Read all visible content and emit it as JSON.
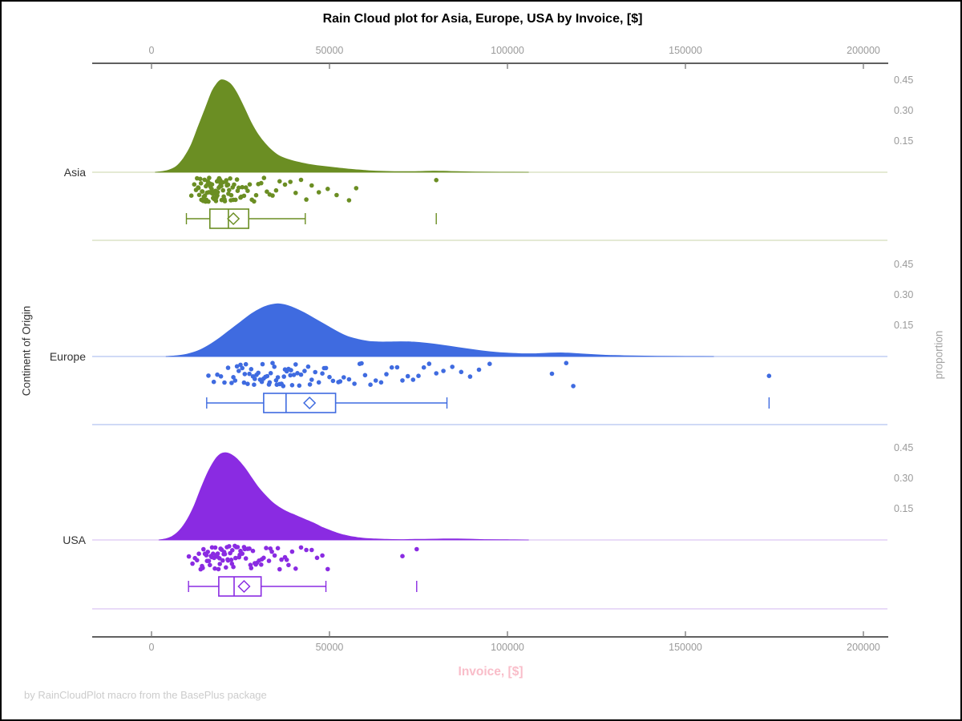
{
  "title": "Rain Cloud plot for Asia, Europe, USA by Invoice, [$]",
  "footer": "by RainCloudPlot macro from the BasePlus package",
  "x_axis": {
    "label": "Invoice, [$]",
    "ticks": [
      {
        "label": "0",
        "value": 0
      },
      {
        "label": "50000",
        "value": 50000
      },
      {
        "label": "100000",
        "value": 100000
      },
      {
        "label": "150000",
        "value": 150000
      },
      {
        "label": "200000",
        "value": 200000
      }
    ],
    "range": [
      0,
      200000
    ]
  },
  "y_axis_left": {
    "label": "Continent of Origin"
  },
  "y_axis_right": {
    "label": "proportion",
    "ticks": [
      {
        "label": "0.45",
        "value": 0.45
      },
      {
        "label": "0.30",
        "value": 0.3
      },
      {
        "label": "0.15",
        "value": 0.15
      }
    ]
  },
  "colors": {
    "background": "#ffffff",
    "border": "#000000",
    "axis_line": "#2b2b2b",
    "tick": "#777777",
    "tick_label": "#9a9a9a",
    "title": "#000000",
    "category_label": "#333333",
    "proportion_label": "#a3a3a3",
    "x_label_pink": "#f9bdc9",
    "footer": "#cccccc"
  },
  "chart_data": {
    "type": "raincloud",
    "orientation": "horizontal",
    "x_range": [
      0,
      200000
    ],
    "proportion_ticks": [
      0.15,
      0.3,
      0.45
    ],
    "legend": "none",
    "groups": [
      {
        "name": "Asia",
        "color": "#6b8e23",
        "color_light": "#d3ddbb",
        "box": {
          "whisker_low": 9800,
          "q1": 16400,
          "median": 21600,
          "q3": 27300,
          "whisker_high": 43200,
          "mean": 23000,
          "outliers": [
            80000
          ]
        },
        "density": [
          [
            1000,
            0
          ],
          [
            3000,
            0.004
          ],
          [
            5000,
            0.012
          ],
          [
            7000,
            0.03
          ],
          [
            9000,
            0.07
          ],
          [
            11000,
            0.13
          ],
          [
            13000,
            0.22
          ],
          [
            15000,
            0.31
          ],
          [
            17000,
            0.4
          ],
          [
            18500,
            0.44
          ],
          [
            19500,
            0.455
          ],
          [
            21000,
            0.45
          ],
          [
            22500,
            0.43
          ],
          [
            24000,
            0.39
          ],
          [
            26000,
            0.32
          ],
          [
            28000,
            0.245
          ],
          [
            30000,
            0.185
          ],
          [
            32000,
            0.14
          ],
          [
            34000,
            0.105
          ],
          [
            36000,
            0.08
          ],
          [
            39000,
            0.06
          ],
          [
            42000,
            0.047
          ],
          [
            45000,
            0.037
          ],
          [
            48000,
            0.03
          ],
          [
            51000,
            0.024
          ],
          [
            54000,
            0.018
          ],
          [
            57000,
            0.013
          ],
          [
            60000,
            0.009
          ],
          [
            63000,
            0.006
          ],
          [
            67000,
            0.004
          ],
          [
            71000,
            0.003
          ],
          [
            75000,
            0.004
          ],
          [
            79000,
            0.006
          ],
          [
            82000,
            0.005
          ],
          [
            86000,
            0.003
          ],
          [
            91000,
            0.0015
          ],
          [
            98000,
            0.0005
          ],
          [
            106000,
            0
          ]
        ],
        "points": [
          11200,
          12000,
          12500,
          12800,
          13100,
          13200,
          13400,
          13700,
          13900,
          14000,
          14200,
          14300,
          14500,
          14700,
          14900,
          15000,
          15200,
          15300,
          15400,
          15600,
          15700,
          15800,
          16000,
          16100,
          16200,
          16400,
          16500,
          16600,
          16800,
          16900,
          17000,
          17200,
          17300,
          17400,
          17600,
          17700,
          17800,
          18000,
          18100,
          18200,
          18400,
          18500,
          18600,
          18800,
          18900,
          19000,
          19200,
          19300,
          19400,
          19600,
          19700,
          19800,
          20000,
          20100,
          20300,
          20500,
          20600,
          20900,
          21000,
          21200,
          21500,
          21600,
          21800,
          22100,
          22300,
          22400,
          22800,
          23000,
          23200,
          23600,
          24000,
          24200,
          24500,
          25000,
          25200,
          25500,
          26000,
          26500,
          27000,
          27600,
          28200,
          28800,
          29400,
          30000,
          30800,
          31600,
          32400,
          33200,
          34000,
          35000,
          36000,
          37500,
          39000,
          40500,
          42000,
          43500,
          45000,
          47000,
          49500,
          52000,
          55500,
          57500,
          80000
        ]
      },
      {
        "name": "Europe",
        "color": "#3f6be0",
        "color_light": "#b3c3f0",
        "box": {
          "whisker_low": 15500,
          "q1": 31500,
          "median": 37800,
          "q3": 51700,
          "whisker_high": 83000,
          "mean": 44400,
          "outliers": [
            173500
          ]
        },
        "density": [
          [
            4000,
            0
          ],
          [
            7000,
            0.004
          ],
          [
            10000,
            0.012
          ],
          [
            13000,
            0.028
          ],
          [
            16000,
            0.055
          ],
          [
            19000,
            0.09
          ],
          [
            22000,
            0.13
          ],
          [
            25000,
            0.17
          ],
          [
            28000,
            0.21
          ],
          [
            31000,
            0.24
          ],
          [
            33500,
            0.255
          ],
          [
            35500,
            0.26
          ],
          [
            37500,
            0.255
          ],
          [
            40000,
            0.24
          ],
          [
            43000,
            0.215
          ],
          [
            46000,
            0.185
          ],
          [
            49000,
            0.155
          ],
          [
            52000,
            0.125
          ],
          [
            55000,
            0.1
          ],
          [
            58000,
            0.085
          ],
          [
            61000,
            0.075
          ],
          [
            64000,
            0.072
          ],
          [
            67000,
            0.072
          ],
          [
            70000,
            0.073
          ],
          [
            73000,
            0.072
          ],
          [
            76000,
            0.068
          ],
          [
            80000,
            0.06
          ],
          [
            84000,
            0.05
          ],
          [
            88000,
            0.04
          ],
          [
            92000,
            0.03
          ],
          [
            96000,
            0.022
          ],
          [
            100000,
            0.017
          ],
          [
            104000,
            0.014
          ],
          [
            108000,
            0.014
          ],
          [
            112000,
            0.017
          ],
          [
            115000,
            0.018
          ],
          [
            118000,
            0.016
          ],
          [
            122000,
            0.012
          ],
          [
            126000,
            0.008
          ],
          [
            130000,
            0.005
          ],
          [
            135000,
            0.003
          ],
          [
            142000,
            0.0015
          ],
          [
            150000,
            0.0005
          ],
          [
            158000,
            0
          ]
        ],
        "points": [
          16000,
          17500,
          18500,
          19500,
          20500,
          21500,
          22500,
          23000,
          23500,
          24000,
          24500,
          25000,
          25500,
          26000,
          26200,
          26500,
          27000,
          27500,
          28000,
          28500,
          28800,
          29000,
          29500,
          30000,
          30500,
          31000,
          31200,
          31500,
          32000,
          32500,
          33000,
          33200,
          33500,
          34000,
          34500,
          35000,
          35200,
          35500,
          36000,
          36500,
          37000,
          37200,
          37500,
          38000,
          38500,
          39000,
          39200,
          39500,
          40000,
          40500,
          41000,
          41500,
          42000,
          43000,
          44000,
          44500,
          45000,
          46000,
          47000,
          48000,
          48500,
          49000,
          50000,
          51000,
          52500,
          53000,
          54000,
          55500,
          57000,
          58500,
          59000,
          60000,
          61500,
          63000,
          64500,
          66000,
          67500,
          69000,
          70500,
          72000,
          73500,
          75000,
          76500,
          78000,
          80000,
          82000,
          84500,
          87000,
          89500,
          92000,
          95000,
          112500,
          116500,
          118500,
          173500
        ]
      },
      {
        "name": "USA",
        "color": "#8a2be2",
        "color_light": "#dcc5f4",
        "box": {
          "whisker_low": 10400,
          "q1": 18900,
          "median": 23200,
          "q3": 30800,
          "whisker_high": 49000,
          "mean": 26000,
          "outliers": [
            74500
          ]
        },
        "density": [
          [
            2000,
            0
          ],
          [
            4000,
            0.006
          ],
          [
            6000,
            0.02
          ],
          [
            8000,
            0.05
          ],
          [
            10000,
            0.1
          ],
          [
            12000,
            0.17
          ],
          [
            14000,
            0.26
          ],
          [
            16000,
            0.34
          ],
          [
            18000,
            0.4
          ],
          [
            19500,
            0.425
          ],
          [
            21000,
            0.43
          ],
          [
            22500,
            0.42
          ],
          [
            24000,
            0.4
          ],
          [
            26000,
            0.36
          ],
          [
            28000,
            0.31
          ],
          [
            30000,
            0.26
          ],
          [
            32000,
            0.22
          ],
          [
            34000,
            0.185
          ],
          [
            36000,
            0.16
          ],
          [
            38000,
            0.14
          ],
          [
            40000,
            0.125
          ],
          [
            42000,
            0.11
          ],
          [
            44000,
            0.095
          ],
          [
            46000,
            0.08
          ],
          [
            48000,
            0.062
          ],
          [
            50000,
            0.048
          ],
          [
            52000,
            0.035
          ],
          [
            54000,
            0.025
          ],
          [
            56000,
            0.017
          ],
          [
            58000,
            0.012
          ],
          [
            60000,
            0.008
          ],
          [
            63000,
            0.005
          ],
          [
            66000,
            0.003
          ],
          [
            70000,
            0.002
          ],
          [
            74000,
            0.003
          ],
          [
            78000,
            0.004
          ],
          [
            82000,
            0.005
          ],
          [
            86000,
            0.005
          ],
          [
            90000,
            0.004
          ],
          [
            94000,
            0.002
          ],
          [
            100000,
            0.001
          ],
          [
            106000,
            0
          ]
        ],
        "points": [
          10500,
          11500,
          12200,
          12800,
          13300,
          13800,
          14200,
          14400,
          14600,
          15000,
          15400,
          15600,
          15800,
          16100,
          16400,
          16700,
          16900,
          17000,
          17300,
          17600,
          17800,
          17900,
          18200,
          18500,
          18600,
          18800,
          19100,
          19200,
          19400,
          19700,
          20000,
          20300,
          20400,
          20600,
          20900,
          21200,
          21400,
          21500,
          21800,
          22100,
          22400,
          22600,
          22700,
          23000,
          23400,
          23600,
          23800,
          24200,
          24600,
          24800,
          25000,
          25500,
          26000,
          26200,
          26500,
          27000,
          27500,
          27800,
          28000,
          28500,
          29000,
          29300,
          29600,
          30200,
          30800,
          31000,
          31500,
          32200,
          33000,
          33400,
          33800,
          34600,
          35500,
          36000,
          36500,
          37500,
          38000,
          38500,
          39500,
          40500,
          42000,
          43500,
          45000,
          46500,
          48000,
          49500,
          70500,
          74500
        ]
      }
    ]
  }
}
